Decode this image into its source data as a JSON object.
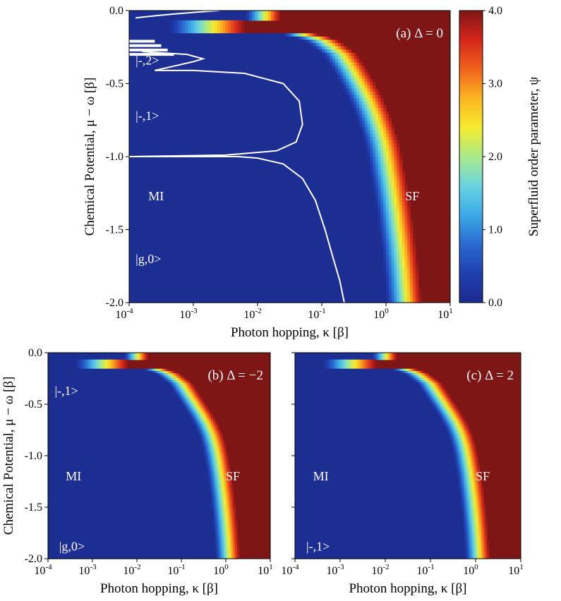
{
  "chart_data": [
    {
      "id": "a",
      "type": "heatmap",
      "title": "(a) Δ = 0",
      "xlabel": "Photon hopping, κ [β]",
      "ylabel": "Chemical Potential, μ − ω [β]",
      "xscale": "log",
      "xlim_log10": [
        -4,
        1
      ],
      "ylim": [
        -2.0,
        0.0
      ],
      "xticks": [
        {
          "log10": -4,
          "base": "10",
          "exp": "-4"
        },
        {
          "log10": -3,
          "base": "10",
          "exp": "-3"
        },
        {
          "log10": -2,
          "base": "10",
          "exp": "-2"
        },
        {
          "log10": -1,
          "base": "10",
          "exp": "-1"
        },
        {
          "log10": 0,
          "base": "10",
          "exp": "0"
        },
        {
          "log10": 1,
          "base": "10",
          "exp": "1"
        }
      ],
      "yticks": [
        {
          "value": 0.0,
          "label": "0.0"
        },
        {
          "value": -0.5,
          "label": "-0.5"
        },
        {
          "value": -1.0,
          "label": "-1.0"
        },
        {
          "value": -1.5,
          "label": "-1.5"
        },
        {
          "value": -2.0,
          "label": "-2.0"
        }
      ],
      "boundary_log10_kappa": {
        "mu": [
          0.0,
          -0.1,
          -0.2,
          -0.3,
          -0.4,
          -0.5,
          -0.6,
          -0.7,
          -0.8,
          -0.9,
          -1.0,
          -1.2,
          -1.4,
          -1.6,
          -1.8,
          -2.0
        ],
        "log10_kappa": [
          -2.2,
          -2.2,
          -1.3,
          -1.0,
          -0.85,
          -0.72,
          -0.6,
          -0.5,
          -0.42,
          -0.35,
          -0.3,
          -0.22,
          -0.15,
          -0.09,
          -0.04,
          0.0
        ]
      },
      "phase_lines": true,
      "annotations": [
        {
          "text": "|-,2>",
          "log10_kappa": -3.9,
          "mu": -0.34
        },
        {
          "text": "|-,1>",
          "log10_kappa": -3.9,
          "mu": -0.72
        },
        {
          "text": "MI",
          "log10_kappa": -3.7,
          "mu": -1.27
        },
        {
          "text": "SF",
          "log10_kappa": 0.3,
          "mu": -1.27
        },
        {
          "text": "|g,0>",
          "log10_kappa": -3.9,
          "mu": -1.7
        }
      ],
      "colorbar": {
        "label": "Superfluid order parameter, ψ",
        "range": [
          0.0,
          4.0
        ],
        "ticks": [
          {
            "value": 0.0,
            "label": "0.0"
          },
          {
            "value": 1.0,
            "label": "1.0"
          },
          {
            "value": 2.0,
            "label": "2.0"
          },
          {
            "value": 3.0,
            "label": "3.0"
          },
          {
            "value": 4.0,
            "label": "4.0"
          }
        ],
        "colors": [
          "#1d2a8c",
          "#1f3fb0",
          "#2a6ad1",
          "#3ba9e6",
          "#6ad4e0",
          "#a9ea8a",
          "#f5ec2d",
          "#fbb421",
          "#f0621c",
          "#d4261a",
          "#7f1616"
        ]
      }
    },
    {
      "id": "b",
      "type": "heatmap",
      "title": "(b) Δ = −2",
      "xlabel": "Photon hopping, κ [β]",
      "ylabel": "Chemical Potential, μ − ω [β]",
      "xscale": "log",
      "xlim_log10": [
        -4,
        1
      ],
      "ylim": [
        -2.0,
        0.0
      ],
      "boundary_log10_kappa": {
        "mu": [
          0.0,
          -0.1,
          -0.2,
          -0.3,
          -0.4,
          -0.5,
          -0.6,
          -0.7,
          -0.8,
          -0.9,
          -1.0,
          -1.2,
          -1.4,
          -1.6,
          -1.8,
          -2.0
        ],
        "log10_kappa": [
          -2.3,
          -2.3,
          -1.6,
          -1.3,
          -1.15,
          -1.0,
          -0.85,
          -0.72,
          -0.62,
          -0.55,
          -0.5,
          -0.42,
          -0.36,
          -0.31,
          -0.27,
          -0.24
        ]
      },
      "annotations": [
        {
          "text": "|-,1>",
          "log10_kappa": -3.85,
          "mu": -0.37
        },
        {
          "text": "MI",
          "log10_kappa": -3.6,
          "mu": -1.2
        },
        {
          "text": "SF",
          "log10_kappa": 0.0,
          "mu": -1.2
        },
        {
          "text": "|g,0>",
          "log10_kappa": -3.75,
          "mu": -1.88
        }
      ]
    },
    {
      "id": "c",
      "type": "heatmap",
      "title": "(c) Δ = 2",
      "xlabel": "Photon hopping, κ [β]",
      "ylabel": "",
      "xscale": "log",
      "xlim_log10": [
        -4,
        1
      ],
      "ylim": [
        -2.0,
        0.0
      ],
      "boundary_log10_kappa": {
        "mu": [
          0.0,
          -0.1,
          -0.2,
          -0.3,
          -0.4,
          -0.5,
          -0.6,
          -0.7,
          -0.8,
          -0.9,
          -1.0,
          -1.2,
          -1.4,
          -1.6,
          -1.8,
          -2.0
        ],
        "log10_kappa": [
          -2.3,
          -2.3,
          -1.6,
          -1.3,
          -1.15,
          -1.0,
          -0.85,
          -0.72,
          -0.62,
          -0.55,
          -0.5,
          -0.42,
          -0.36,
          -0.31,
          -0.27,
          -0.24
        ]
      },
      "annotations": [
        {
          "text": "MI",
          "log10_kappa": -3.6,
          "mu": -1.2
        },
        {
          "text": "SF",
          "log10_kappa": 0.0,
          "mu": -1.2
        },
        {
          "text": "|-,1>",
          "log10_kappa": -3.75,
          "mu": -1.88
        }
      ]
    }
  ]
}
